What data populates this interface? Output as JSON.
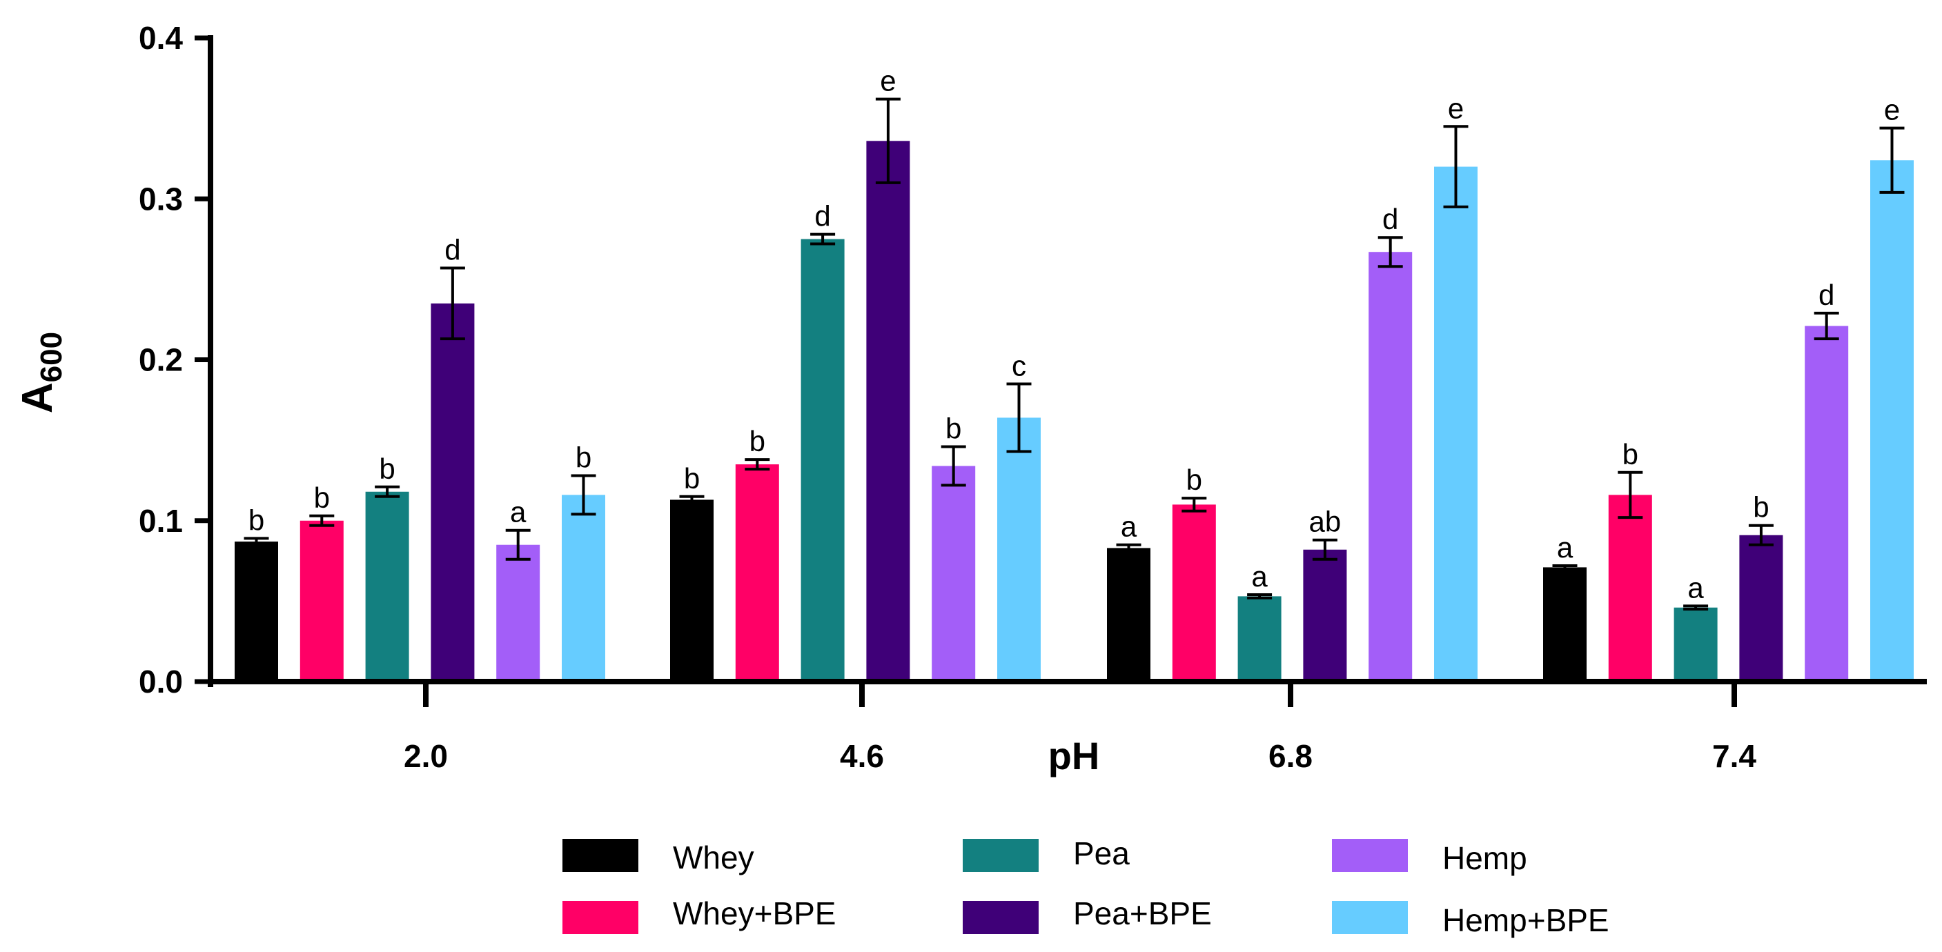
{
  "chart_data": {
    "type": "bar",
    "xlabel": "pH",
    "ylabel": {
      "main": "A",
      "sub": "600"
    },
    "ylim": [
      0,
      0.4
    ],
    "yticks": [
      "0.0",
      "0.1",
      "0.2",
      "0.3",
      "0.4"
    ],
    "categories": [
      "2.0",
      "4.6",
      "6.8",
      "7.4"
    ],
    "series": [
      {
        "name": "Whey",
        "color": "#000000",
        "values": [
          0.087,
          0.113,
          0.083,
          0.071
        ],
        "errors": [
          0.002,
          0.002,
          0.002,
          0.001
        ],
        "letters": [
          "b",
          "b",
          "a",
          "a"
        ]
      },
      {
        "name": "Whey+BPE",
        "color": "#FF0066",
        "values": [
          0.1,
          0.135,
          0.11,
          0.116
        ],
        "errors": [
          0.003,
          0.003,
          0.004,
          0.014
        ],
        "letters": [
          "b",
          "b",
          "b",
          "b"
        ]
      },
      {
        "name": "Pea",
        "color": "#138080",
        "values": [
          0.118,
          0.275,
          0.053,
          0.046
        ],
        "errors": [
          0.003,
          0.003,
          0.001,
          0.001
        ],
        "letters": [
          "b",
          "d",
          "a",
          "a"
        ]
      },
      {
        "name": "Pea+BPE",
        "color": "#3F0078",
        "values": [
          0.235,
          0.336,
          0.082,
          0.091
        ],
        "errors": [
          0.022,
          0.026,
          0.006,
          0.006
        ],
        "letters": [
          "d",
          "e",
          "ab",
          "b"
        ]
      },
      {
        "name": "Hemp",
        "color": "#A35EF8",
        "values": [
          0.085,
          0.134,
          0.267,
          0.221
        ],
        "errors": [
          0.009,
          0.012,
          0.009,
          0.008
        ],
        "letters": [
          "a",
          "b",
          "d",
          "d"
        ]
      },
      {
        "name": "Hemp+BPE",
        "color": "#66CCFF",
        "values": [
          0.116,
          0.164,
          0.32,
          0.324
        ],
        "errors": [
          0.012,
          0.021,
          0.025,
          0.02
        ],
        "letters": [
          "b",
          "c",
          "e",
          "e"
        ]
      }
    ],
    "legend_position": "bottom"
  }
}
